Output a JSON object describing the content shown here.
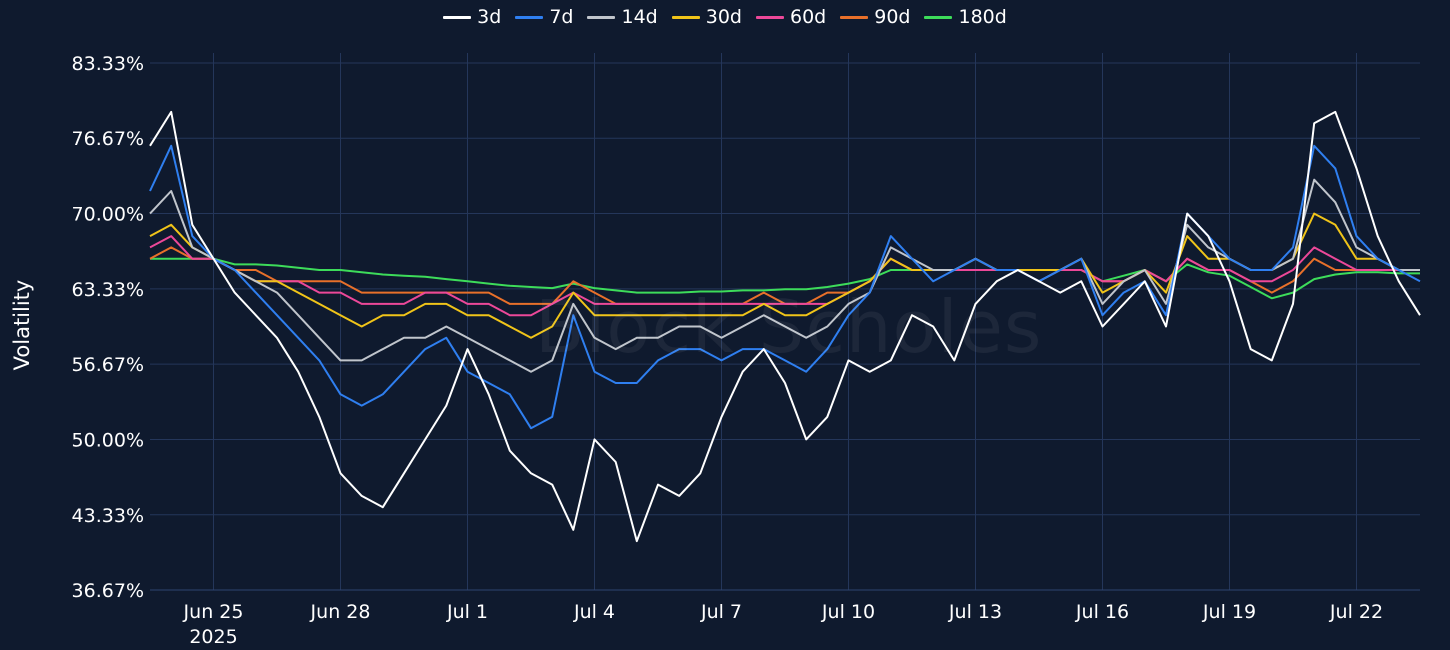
{
  "chart_data": {
    "type": "line",
    "title": "",
    "xlabel": "",
    "ylabel": "Volatility",
    "watermark": "Block Scholes",
    "ylim": [
      36.67,
      83.33
    ],
    "grid": true,
    "legend_position": "top-center",
    "y_ticks": [
      "83.33%",
      "76.67%",
      "70.00%",
      "63.33%",
      "56.67%",
      "50.00%",
      "43.33%",
      "36.67%"
    ],
    "y_tick_values": [
      83.33,
      76.67,
      70.0,
      63.33,
      56.67,
      50.0,
      43.33,
      36.67
    ],
    "x_ticks": [
      {
        "label": "Jun 25",
        "sub": "2025",
        "date": "2025-06-25"
      },
      {
        "label": "Jun 28",
        "sub": "",
        "date": "2025-06-28"
      },
      {
        "label": "Jul 1",
        "sub": "",
        "date": "2025-07-01"
      },
      {
        "label": "Jul 4",
        "sub": "",
        "date": "2025-07-04"
      },
      {
        "label": "Jul 7",
        "sub": "",
        "date": "2025-07-07"
      },
      {
        "label": "Jul 10",
        "sub": "",
        "date": "2025-07-10"
      },
      {
        "label": "Jul 13",
        "sub": "",
        "date": "2025-07-13"
      },
      {
        "label": "Jul 16",
        "sub": "",
        "date": "2025-07-16"
      },
      {
        "label": "Jul 19",
        "sub": "",
        "date": "2025-07-19"
      },
      {
        "label": "Jul 22",
        "sub": "",
        "date": "2025-07-22"
      }
    ],
    "x_range": [
      "2025-06-23T12:00",
      "2025-07-23T12:00"
    ],
    "x": [
      "2025-06-23T12:00",
      "2025-06-24T00:00",
      "2025-06-24T12:00",
      "2025-06-25T00:00",
      "2025-06-25T12:00",
      "2025-06-26T00:00",
      "2025-06-26T12:00",
      "2025-06-27T00:00",
      "2025-06-27T12:00",
      "2025-06-28T00:00",
      "2025-06-28T12:00",
      "2025-06-29T00:00",
      "2025-06-29T12:00",
      "2025-06-30T00:00",
      "2025-06-30T12:00",
      "2025-07-01T00:00",
      "2025-07-01T12:00",
      "2025-07-02T00:00",
      "2025-07-02T12:00",
      "2025-07-03T00:00",
      "2025-07-03T12:00",
      "2025-07-04T00:00",
      "2025-07-04T12:00",
      "2025-07-05T00:00",
      "2025-07-05T12:00",
      "2025-07-06T00:00",
      "2025-07-06T12:00",
      "2025-07-07T00:00",
      "2025-07-07T12:00",
      "2025-07-08T00:00",
      "2025-07-08T12:00",
      "2025-07-09T00:00",
      "2025-07-09T12:00",
      "2025-07-10T00:00",
      "2025-07-10T12:00",
      "2025-07-11T00:00",
      "2025-07-11T12:00",
      "2025-07-12T00:00",
      "2025-07-12T12:00",
      "2025-07-13T00:00",
      "2025-07-13T12:00",
      "2025-07-14T00:00",
      "2025-07-14T12:00",
      "2025-07-15T00:00",
      "2025-07-15T12:00",
      "2025-07-16T00:00",
      "2025-07-16T12:00",
      "2025-07-17T00:00",
      "2025-07-17T12:00",
      "2025-07-18T00:00",
      "2025-07-18T12:00",
      "2025-07-19T00:00",
      "2025-07-19T12:00",
      "2025-07-20T00:00",
      "2025-07-20T12:00",
      "2025-07-21T00:00",
      "2025-07-21T12:00",
      "2025-07-22T00:00",
      "2025-07-22T12:00",
      "2025-07-23T00:00",
      "2025-07-23T12:00"
    ],
    "series": [
      {
        "name": "3d",
        "color": "#ffffff",
        "width": 2,
        "values": [
          76,
          79,
          69,
          66,
          63,
          61,
          59,
          56,
          52,
          47,
          45,
          44,
          47,
          50,
          53,
          58,
          54,
          49,
          47,
          46,
          42,
          50,
          48,
          41,
          46,
          45,
          47,
          52,
          56,
          58,
          55,
          50,
          52,
          57,
          56,
          57,
          61,
          60,
          57,
          62,
          64,
          65,
          64,
          63,
          64,
          60,
          62,
          64,
          60,
          70,
          68,
          64,
          58,
          57,
          62,
          78,
          79,
          74,
          68,
          64,
          61
        ]
      },
      {
        "name": "7d",
        "color": "#2f7ff0",
        "width": 2,
        "values": [
          72,
          76,
          68,
          66,
          65,
          63,
          61,
          59,
          57,
          54,
          53,
          54,
          56,
          58,
          59,
          56,
          55,
          54,
          51,
          52,
          61,
          56,
          55,
          55,
          57,
          58,
          58,
          57,
          58,
          58,
          57,
          56,
          58,
          61,
          63,
          68,
          66,
          64,
          65,
          66,
          65,
          65,
          64,
          65,
          66,
          61,
          63,
          64,
          61,
          70,
          68,
          66,
          65,
          65,
          67,
          76,
          74,
          68,
          66,
          65,
          64
        ]
      },
      {
        "name": "14d",
        "color": "#c0c5cc",
        "width": 2,
        "values": [
          70,
          72,
          67,
          66,
          65,
          64,
          63,
          61,
          59,
          57,
          57,
          58,
          59,
          59,
          60,
          59,
          58,
          57,
          56,
          57,
          62,
          59,
          58,
          59,
          59,
          60,
          60,
          59,
          60,
          61,
          60,
          59,
          60,
          62,
          63,
          67,
          66,
          65,
          65,
          66,
          65,
          65,
          64,
          65,
          66,
          62,
          64,
          65,
          62,
          69,
          67,
          66,
          65,
          65,
          66,
          73,
          71,
          67,
          66,
          65,
          65
        ]
      },
      {
        "name": "30d",
        "color": "#f0c419",
        "width": 2,
        "values": [
          68,
          69,
          67,
          66,
          65,
          64,
          64,
          63,
          62,
          61,
          60,
          61,
          61,
          62,
          62,
          61,
          61,
          60,
          59,
          60,
          63,
          61,
          61,
          61,
          61,
          61,
          61,
          61,
          61,
          62,
          61,
          61,
          62,
          63,
          64,
          66,
          65,
          65,
          65,
          66,
          65,
          65,
          65,
          65,
          66,
          63,
          64,
          65,
          63,
          68,
          66,
          66,
          65,
          65,
          66,
          70,
          69,
          66,
          66,
          65,
          65
        ]
      },
      {
        "name": "60d",
        "color": "#ec4899",
        "width": 2,
        "values": [
          67,
          68,
          66,
          66,
          65,
          64,
          64,
          64,
          63,
          63,
          62,
          62,
          62,
          63,
          63,
          62,
          62,
          61,
          61,
          62,
          63,
          62,
          62,
          62,
          62,
          62,
          62,
          62,
          62,
          62,
          62,
          62,
          62,
          63,
          64,
          66,
          65,
          65,
          65,
          65,
          65,
          65,
          65,
          65,
          65,
          64,
          64,
          65,
          64,
          66,
          65,
          65,
          64,
          64,
          65,
          67,
          66,
          65,
          65,
          65,
          65
        ]
      },
      {
        "name": "90d",
        "color": "#e8702a",
        "width": 2,
        "values": [
          66,
          67,
          66,
          66,
          65,
          65,
          64,
          64,
          64,
          64,
          63,
          63,
          63,
          63,
          63,
          63,
          63,
          62,
          62,
          62,
          64,
          63,
          62,
          62,
          62,
          62,
          62,
          62,
          62,
          63,
          62,
          62,
          63,
          63,
          64,
          66,
          65,
          65,
          65,
          65,
          65,
          65,
          65,
          65,
          65,
          64,
          64,
          65,
          64,
          66,
          65,
          65,
          64,
          63,
          64,
          66,
          65,
          65,
          65,
          65,
          65
        ]
      },
      {
        "name": "180d",
        "color": "#3ddc5a",
        "width": 2,
        "values": [
          66,
          66,
          66,
          66,
          65.5,
          65.5,
          65.4,
          65.2,
          65,
          65,
          64.8,
          64.6,
          64.5,
          64.4,
          64.2,
          64,
          63.8,
          63.6,
          63.5,
          63.4,
          63.8,
          63.4,
          63.2,
          63,
          63,
          63,
          63.1,
          63.1,
          63.2,
          63.2,
          63.3,
          63.3,
          63.5,
          63.8,
          64.2,
          65,
          65,
          65,
          65,
          65,
          65,
          65,
          65,
          65,
          65,
          64,
          64.5,
          65,
          64,
          65.5,
          64.8,
          64.5,
          63.5,
          62.5,
          63,
          64.2,
          64.6,
          64.8,
          64.8,
          64.7,
          64.7
        ]
      }
    ]
  }
}
